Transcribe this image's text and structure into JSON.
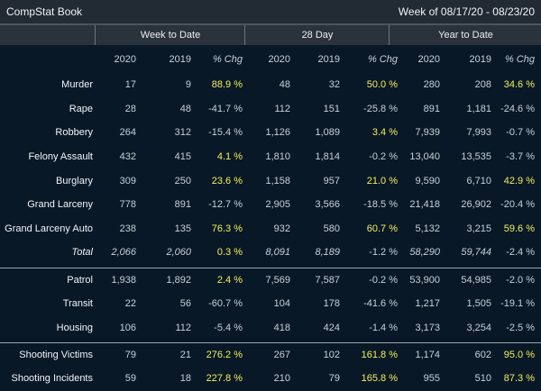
{
  "header": {
    "title": "CompStat Book",
    "week": "Week of 08/17/20 - 08/23/20"
  },
  "groups": [
    "Week to Date",
    "28 Day",
    "Year to Date"
  ],
  "columns": [
    "2020",
    "2019",
    "% Chg",
    "2020",
    "2019",
    "% Chg",
    "2020",
    "2019",
    "% Chg"
  ],
  "colors": {
    "positive_change": "#f4ef5e",
    "background": "#081826",
    "header": "#2a323b"
  },
  "sections": [
    {
      "rows": [
        {
          "label": "Murder",
          "values": [
            "17",
            "9",
            "88.9 %",
            "48",
            "32",
            "50.0 %",
            "280",
            "208",
            "34.6 %"
          ],
          "pos": [
            2,
            5,
            8
          ]
        },
        {
          "label": "Rape",
          "values": [
            "28",
            "48",
            "-41.7 %",
            "112",
            "151",
            "-25.8 %",
            "891",
            "1,181",
            "-24.6 %"
          ],
          "pos": []
        },
        {
          "label": "Robbery",
          "values": [
            "264",
            "312",
            "-15.4 %",
            "1,126",
            "1,089",
            "3.4 %",
            "7,939",
            "7,993",
            "-0.7 %"
          ],
          "pos": [
            5
          ]
        },
        {
          "label": "Felony Assault",
          "values": [
            "432",
            "415",
            "4.1 %",
            "1,810",
            "1,814",
            "-0.2 %",
            "13,040",
            "13,535",
            "-3.7 %"
          ],
          "pos": [
            2
          ]
        },
        {
          "label": "Burglary",
          "values": [
            "309",
            "250",
            "23.6 %",
            "1,158",
            "957",
            "21.0 %",
            "9,590",
            "6,710",
            "42.9 %"
          ],
          "pos": [
            2,
            5,
            8
          ]
        },
        {
          "label": "Grand Larceny",
          "values": [
            "778",
            "891",
            "-12.7 %",
            "2,905",
            "3,566",
            "-18.5 %",
            "21,418",
            "26,902",
            "-20.4 %"
          ],
          "pos": []
        },
        {
          "label": "Grand Larceny Auto",
          "values": [
            "238",
            "135",
            "76.3 %",
            "932",
            "580",
            "60.7 %",
            "5,132",
            "3,215",
            "59.6 %"
          ],
          "pos": [
            2,
            5,
            8
          ]
        },
        {
          "label": "Total",
          "values": [
            "2,066",
            "2,060",
            "0.3 %",
            "8,091",
            "8,189",
            "-1.2 %",
            "58,290",
            "59,744",
            "-2.4 %"
          ],
          "pos": [
            2
          ],
          "italic": true
        }
      ]
    },
    {
      "rows": [
        {
          "label": "Patrol",
          "values": [
            "1,938",
            "1,892",
            "2.4 %",
            "7,569",
            "7,587",
            "-0.2 %",
            "53,900",
            "54,985",
            "-2.0 %"
          ],
          "pos": [
            2
          ]
        },
        {
          "label": "Transit",
          "values": [
            "22",
            "56",
            "-60.7 %",
            "104",
            "178",
            "-41.6 %",
            "1,217",
            "1,505",
            "-19.1 %"
          ],
          "pos": []
        },
        {
          "label": "Housing",
          "values": [
            "106",
            "112",
            "-5.4 %",
            "418",
            "424",
            "-1.4 %",
            "3,173",
            "3,254",
            "-2.5 %"
          ],
          "pos": []
        }
      ]
    },
    {
      "rows": [
        {
          "label": "Shooting Victims",
          "values": [
            "79",
            "21",
            "276.2 %",
            "267",
            "102",
            "161.8 %",
            "1,174",
            "602",
            "95.0 %"
          ],
          "pos": [
            2,
            5,
            8
          ]
        },
        {
          "label": "Shooting Incidents",
          "values": [
            "59",
            "18",
            "227.8 %",
            "210",
            "79",
            "165.8 %",
            "955",
            "510",
            "87.3 %"
          ],
          "pos": [
            2,
            5,
            8
          ]
        }
      ]
    }
  ]
}
